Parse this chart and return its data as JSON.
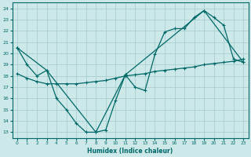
{
  "xlabel": "Humidex (Indice chaleur)",
  "ylabel": "",
  "bg_color": "#cce8e8",
  "grid_color": "#aacece",
  "line_color": "#006868",
  "xlim": [
    -0.5,
    23.5
  ],
  "ylim": [
    12.5,
    24.5
  ],
  "yticks": [
    13,
    14,
    15,
    16,
    17,
    18,
    19,
    20,
    21,
    22,
    23,
    24
  ],
  "xticks": [
    0,
    1,
    2,
    3,
    4,
    5,
    6,
    7,
    8,
    9,
    10,
    11,
    12,
    13,
    14,
    15,
    16,
    17,
    18,
    19,
    20,
    21,
    22,
    23
  ],
  "series1_x": [
    0,
    1,
    2,
    3,
    4,
    5,
    6,
    7,
    8,
    9,
    10,
    11,
    12,
    13,
    14,
    15,
    16,
    17,
    18,
    19,
    20,
    21,
    22,
    23
  ],
  "series1_y": [
    20.5,
    19.0,
    18.0,
    18.5,
    16.0,
    15.0,
    13.8,
    13.0,
    13.0,
    13.2,
    15.8,
    18.1,
    17.0,
    16.7,
    19.9,
    21.9,
    22.2,
    22.2,
    23.2,
    23.8,
    23.2,
    22.5,
    19.5,
    19.2
  ],
  "series2_x": [
    0,
    3,
    8,
    11,
    19,
    23
  ],
  "series2_y": [
    20.5,
    18.5,
    13.0,
    18.1,
    23.8,
    19.2
  ],
  "series3_x": [
    0,
    1,
    2,
    3,
    4,
    5,
    6,
    7,
    8,
    9,
    10,
    11,
    12,
    13,
    14,
    15,
    16,
    17,
    18,
    19,
    20,
    21,
    22,
    23
  ],
  "series3_y": [
    18.2,
    17.8,
    17.5,
    17.3,
    17.3,
    17.3,
    17.3,
    17.4,
    17.5,
    17.6,
    17.8,
    18.0,
    18.1,
    18.2,
    18.4,
    18.5,
    18.6,
    18.7,
    18.8,
    19.0,
    19.1,
    19.2,
    19.3,
    19.5
  ]
}
